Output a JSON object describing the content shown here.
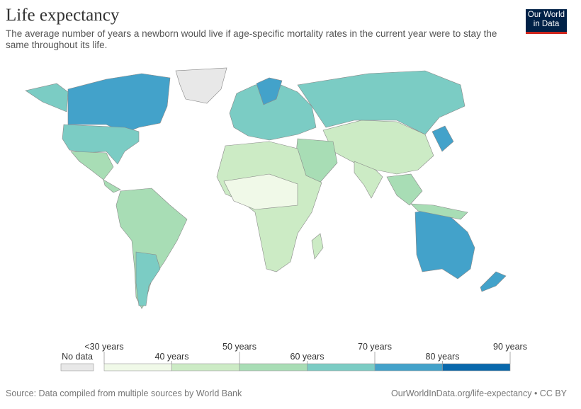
{
  "header": {
    "title": "Life expectancy",
    "subtitle": "The average number of years a newborn would live if age-specific mortality rates in the current year were to stay the same throughout its life.",
    "logo": "Our World in Data"
  },
  "legend": {
    "no_data": {
      "label": "No data",
      "color": "#e8e8e8"
    },
    "ticks": [
      "<30 years",
      "40 years",
      "50 years",
      "60 years",
      "70 years",
      "80 years",
      "90 years"
    ],
    "colors": [
      "#f0f9e8",
      "#ccebc5",
      "#a8ddb5",
      "#7bccc4",
      "#43a2ca",
      "#0868ac"
    ]
  },
  "footer": {
    "source": "Source: Data compiled from multiple sources by World Bank",
    "url": "OurWorldInData.org/life-expectancy • CC BY"
  }
}
